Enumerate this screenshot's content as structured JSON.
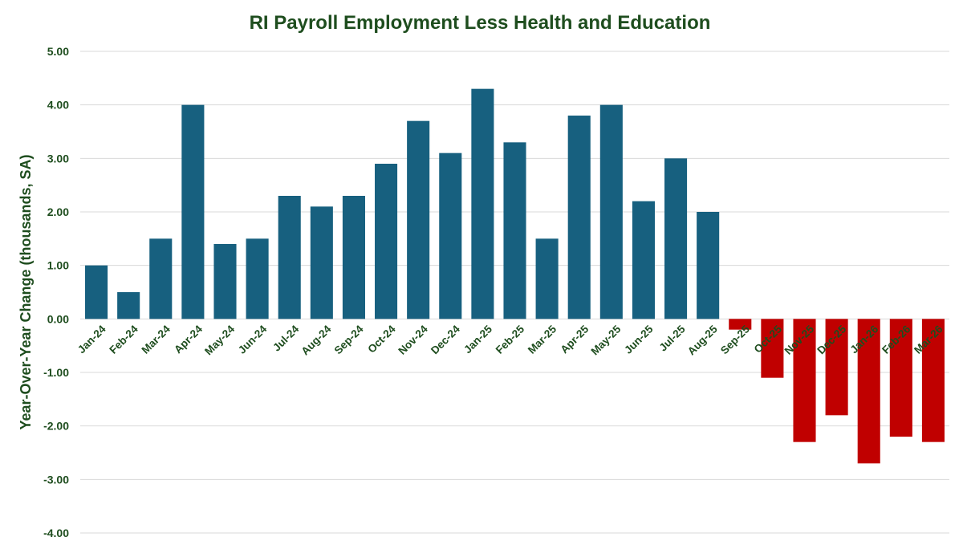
{
  "chart_data": {
    "type": "bar",
    "title": "RI Payroll Employment Less Health and Education",
    "xlabel": "",
    "ylabel": "Year-Over-Year Change (thousands, SA)",
    "ylim": [
      -4,
      5
    ],
    "ytick_labels": [
      "5.00",
      "4.00",
      "3.00",
      "2.00",
      "1.00",
      "0.00",
      "-1.00",
      "-2.00",
      "-3.00",
      "-4.00"
    ],
    "ytick_values": [
      5,
      4,
      3,
      2,
      1,
      0,
      -1,
      -2,
      -3,
      -4
    ],
    "grid": true,
    "legend": "none",
    "categories": [
      "Jan-24",
      "Feb-24",
      "Mar-24",
      "Apr-24",
      "May-24",
      "Jun-24",
      "Jul-24",
      "Aug-24",
      "Sep-24",
      "Oct-24",
      "Nov-24",
      "Dec-24",
      "Jan-25",
      "Feb-25",
      "Mar-25",
      "Apr-25",
      "May-25",
      "Jun-25",
      "Jul-25",
      "Aug-25",
      "Sep-25",
      "Oct-25",
      "Nov-25",
      "Dec-25",
      "Jan-26",
      "Feb-26",
      "Mar-26"
    ],
    "values": [
      1.0,
      0.5,
      1.5,
      4.0,
      1.4,
      1.5,
      2.3,
      2.1,
      2.3,
      2.9,
      3.7,
      3.1,
      4.3,
      3.3,
      1.5,
      3.8,
      4.0,
      2.2,
      3.0,
      2.0,
      -0.2,
      -1.1,
      -2.3,
      -1.8,
      -2.7,
      -2.2,
      -2.3
    ],
    "colors": {
      "positive": "#17607f",
      "negative": "#c00000",
      "title": "#1e4d1e",
      "axis_text": "#1e4d1e",
      "gridline": "#d9d9d9"
    }
  }
}
